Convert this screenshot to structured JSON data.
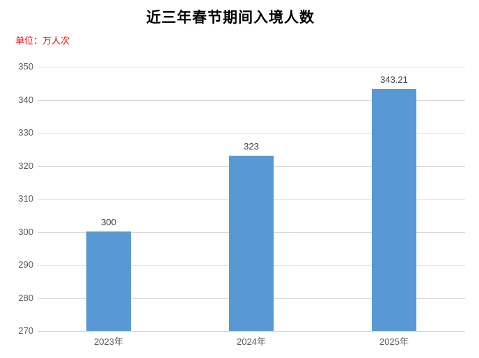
{
  "title": "近三年春节期间入境人数",
  "unit_label": "单位：万人次",
  "colors": {
    "background": "#FFFFFF",
    "title_text": "#000000",
    "unit_text": "#FF0000",
    "bar": "#5899D4",
    "gridline": "#D9D9D9",
    "axis_line": "#C6C6C6",
    "tick_text": "#595959",
    "value_text": "#404040"
  },
  "chart_data": {
    "type": "bar",
    "title": "近三年春节期间入境人数",
    "categories": [
      "2023年",
      "2024年",
      "2025年"
    ],
    "values": [
      300,
      323,
      343.21
    ],
    "value_labels": [
      "300",
      "323",
      "343.21"
    ],
    "xlabel": "",
    "ylabel": "单位：万人次",
    "ylim": [
      270,
      350
    ],
    "ytick_step": 10,
    "yticks": [
      270,
      280,
      290,
      300,
      310,
      320,
      330,
      340,
      350
    ],
    "grid": true,
    "legend": false,
    "legend_position": "none"
  }
}
